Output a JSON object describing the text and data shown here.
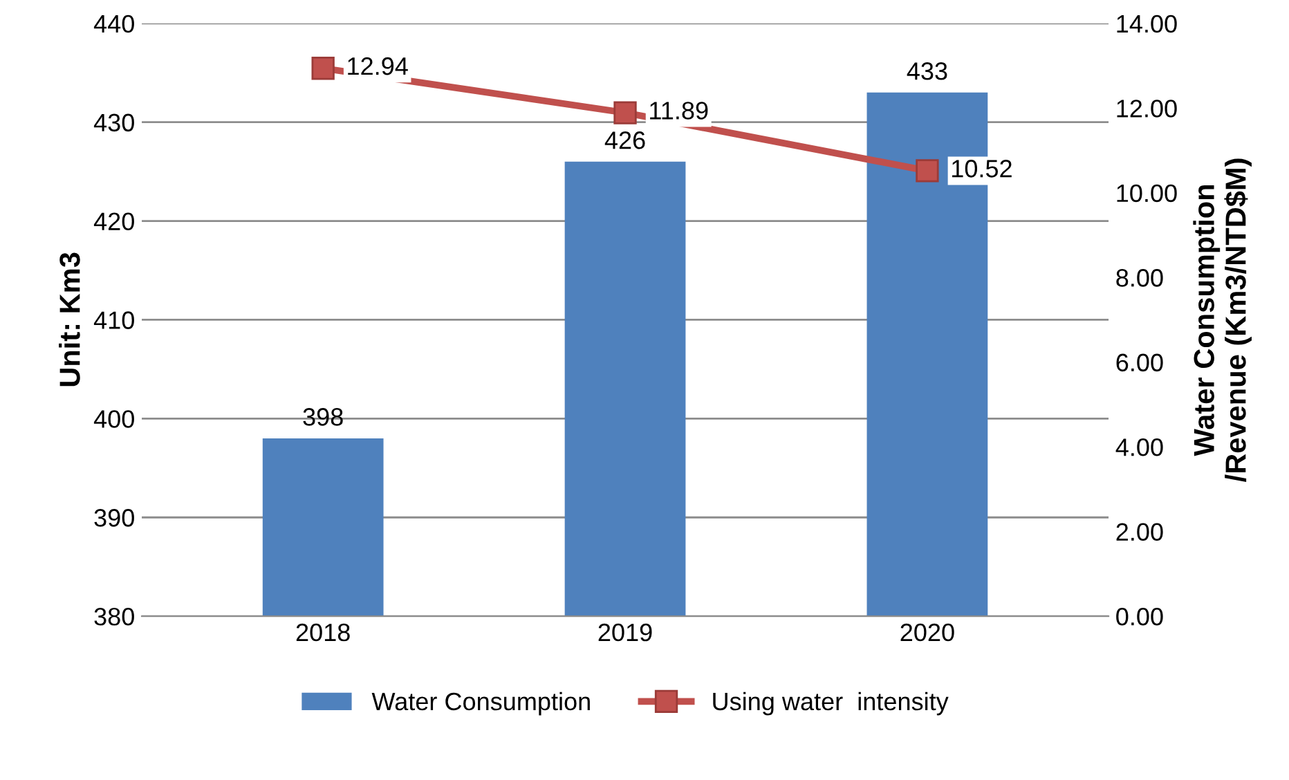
{
  "chart_data": {
    "type": "bar",
    "categories": [
      "2018",
      "2019",
      "2020"
    ],
    "ylabel": "Unit: Km3",
    "y2label": "Water Consumption\n/Revenue (Km3/NTD$M)",
    "series": [
      {
        "name": "Water Consumption",
        "color": "#4f81bd",
        "values": [
          398,
          426,
          433
        ]
      },
      {
        "name": "Using water  intensity",
        "type": "line",
        "axis": "y2",
        "color": "#c0504d",
        "marker": "square",
        "values": [
          12.94,
          11.89,
          10.52
        ]
      }
    ],
    "ylim": [
      380,
      440
    ],
    "yticks": [
      380,
      390,
      400,
      410,
      420,
      430,
      440
    ],
    "y2lim": [
      0,
      14
    ],
    "y2ticks": [
      {
        "value": 0,
        "label": "0.00"
      },
      {
        "value": 2,
        "label": "2.00"
      },
      {
        "value": 4,
        "label": "4.00"
      },
      {
        "value": 6,
        "label": "6.00"
      },
      {
        "value": 8,
        "label": "8.00"
      },
      {
        "value": 10,
        "label": "10.00"
      },
      {
        "value": 12,
        "label": "12.00"
      },
      {
        "value": 14,
        "label": "14.00"
      }
    ],
    "grid": "y",
    "legend": "bottom",
    "data_labels": true
  }
}
